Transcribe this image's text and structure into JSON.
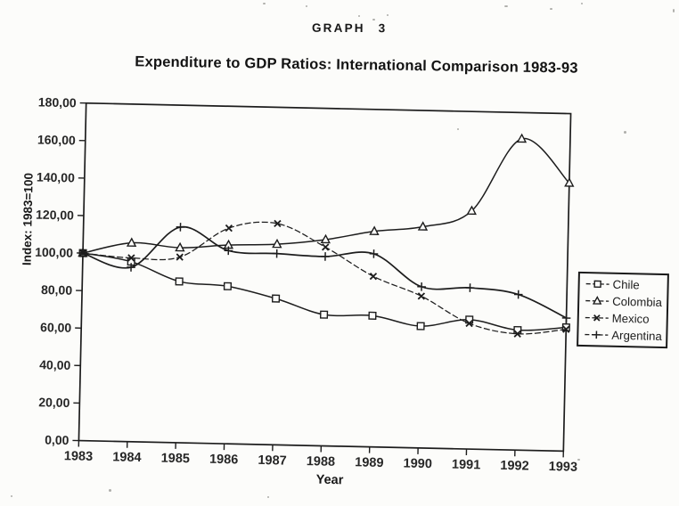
{
  "header": {
    "graph_label": "GRAPH 3"
  },
  "colors": {
    "ink": "#1d1d1d",
    "paper": "#fcfcfa"
  },
  "chart_data": {
    "type": "line",
    "title": "Expenditure to GDP Ratios: International Comparison 1983-93",
    "xlabel": "Year",
    "ylabel": "Index: 1983=100",
    "x": [
      1983,
      1984,
      1985,
      1986,
      1987,
      1988,
      1989,
      1990,
      1991,
      1992,
      1993
    ],
    "ylim": [
      0,
      180
    ],
    "ytick_step": 20,
    "ytick_labels": [
      "0,00",
      "20,00",
      "40,00",
      "60,00",
      "80,00",
      "100,00",
      "120,00",
      "140,00",
      "160,00",
      "180,00"
    ],
    "grid": false,
    "legend_position": "right",
    "series": [
      {
        "name": "Chile",
        "marker": "square",
        "line": "solid",
        "values": [
          100,
          96,
          86,
          84,
          78,
          70,
          70,
          65,
          69,
          64,
          66
        ]
      },
      {
        "name": "Colombia",
        "marker": "triangle",
        "line": "solid",
        "values": [
          100,
          106,
          104,
          106,
          107,
          110,
          115,
          118,
          127,
          166,
          143
        ]
      },
      {
        "name": "Mexico",
        "marker": "x",
        "line": "dashed",
        "values": [
          100,
          98,
          99,
          115,
          118,
          106,
          91,
          81,
          67,
          62,
          65
        ]
      },
      {
        "name": "Argentina",
        "marker": "plus",
        "line": "solid",
        "values": [
          100,
          93,
          115,
          103,
          102,
          101,
          103,
          86,
          86,
          83,
          71
        ]
      }
    ]
  }
}
